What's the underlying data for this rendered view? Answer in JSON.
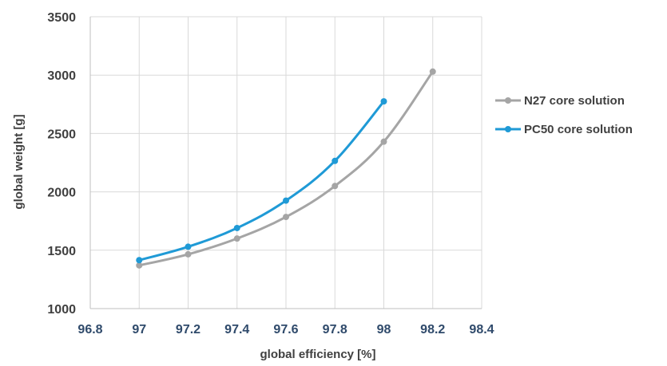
{
  "chart_data": {
    "type": "line",
    "title": "",
    "xlabel": "global efficiency [%]",
    "ylabel": "global weight [g]",
    "xlim": [
      96.8,
      98.4
    ],
    "ylim": [
      1000,
      3500
    ],
    "x_ticks": [
      "96.8",
      "97",
      "97.2",
      "97.4",
      "97.6",
      "97.8",
      "98",
      "98.2",
      "98.4"
    ],
    "y_ticks": [
      "1000",
      "1500",
      "2000",
      "2500",
      "3000",
      "3500"
    ],
    "grid": "vertical and horizontal",
    "legend_position": "right",
    "series": [
      {
        "name": "N27 core solution",
        "color": "#a5a5a5",
        "points": [
          [
            97.0,
            1370
          ],
          [
            97.2,
            1465
          ],
          [
            97.4,
            1600
          ],
          [
            97.6,
            1785
          ],
          [
            97.8,
            2050
          ],
          [
            98.0,
            2430
          ],
          [
            98.2,
            3030
          ]
        ]
      },
      {
        "name": "PC50 core solution",
        "color": "#1f9ad6",
        "points": [
          [
            97.0,
            1415
          ],
          [
            97.2,
            1530
          ],
          [
            97.4,
            1690
          ],
          [
            97.6,
            1925
          ],
          [
            97.8,
            2265
          ],
          [
            98.0,
            2775
          ]
        ]
      }
    ]
  }
}
